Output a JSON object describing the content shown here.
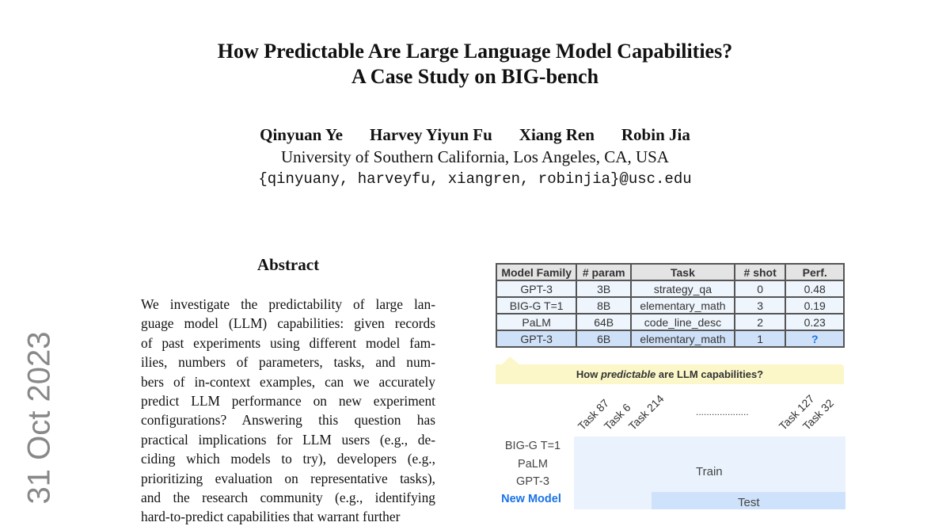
{
  "title": [
    "How Predictable Are Large Language Model Capabilities?",
    "A Case Study on BIG-bench"
  ],
  "authors": [
    "Qinyuan Ye",
    "Harvey Yiyun Fu",
    "Xiang Ren",
    "Robin Jia"
  ],
  "affiliation": "University of Southern California, Los Angeles, CA, USA",
  "emails": "{qinyuany, harveyfu, xiangren, robinjia}@usc.edu",
  "arxiv_date": "31 Oct 2023",
  "abstract_heading": "Abstract",
  "abstract_lines": [
    "We investigate the predictability of large lan-",
    "guage model (LLM) capabilities: given records",
    "of past experiments using different model fam-",
    "ilies, numbers of parameters, tasks, and num-",
    "bers of in-context examples, can we accurately",
    "predict LLM performance on new experiment",
    "configurations?  Answering this question has",
    "practical implications for LLM users (e.g., de-",
    "ciding which models to try), developers (e.g.,",
    "prioritizing evaluation on representative tasks),",
    "and the research community (e.g., identifying",
    "hard-to-predict capabilities that warrant further"
  ],
  "figure": {
    "table": {
      "headers": [
        "Model Family",
        "# param",
        "Task",
        "# shot",
        "Perf."
      ],
      "rows": [
        [
          "GPT-3",
          "3B",
          "strategy_qa",
          "0",
          "0.48"
        ],
        [
          "BIG-G T=1",
          "8B",
          "elementary_math",
          "3",
          "0.19"
        ],
        [
          "PaLM",
          "64B",
          "code_line_desc",
          "2",
          "0.23"
        ],
        [
          "GPT-3",
          "6B",
          "elementary_math",
          "1",
          "?"
        ]
      ]
    },
    "bubble": {
      "pre": "How ",
      "em": "predictable",
      "post": " are LLM capabilities?"
    },
    "tasks": [
      "Task 87",
      "Task 6",
      "Task 214",
      "Task 127",
      "Task 32"
    ],
    "ellipsis": "....................",
    "models": [
      "BIG-G T=1",
      "PaLM",
      "GPT-3",
      "New Model"
    ],
    "train_label": "Train",
    "test_label": "Test",
    "colors": {
      "new_model": "#1a73e8",
      "train": "#eaf3fd",
      "test": "#cfe2fb",
      "bubble": "#fbf7c9"
    }
  }
}
